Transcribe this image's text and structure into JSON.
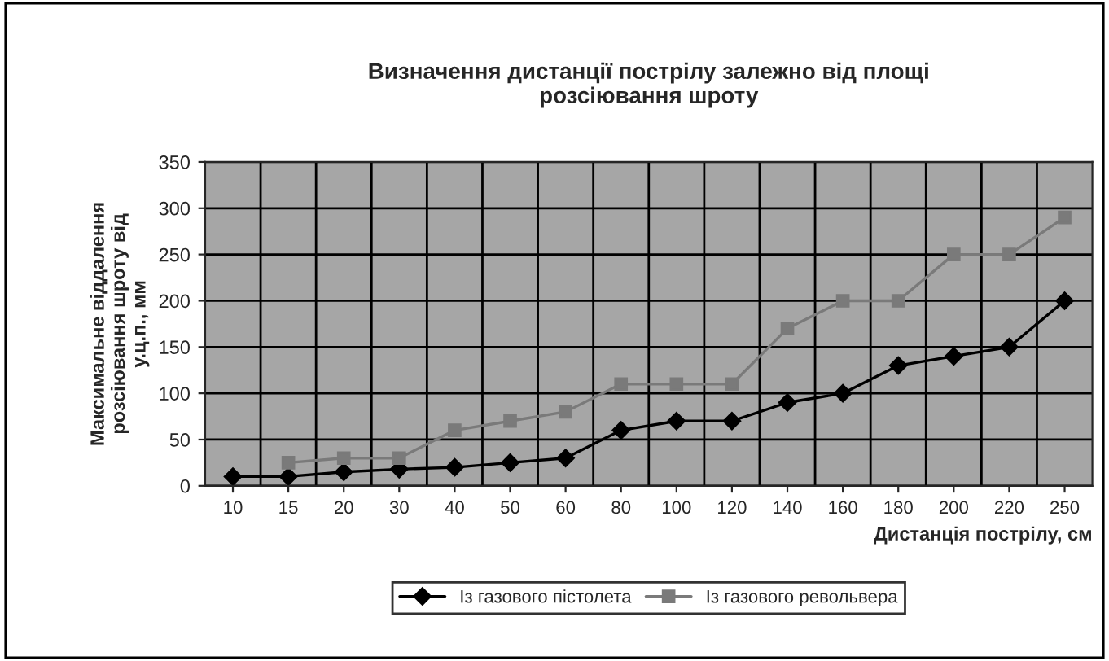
{
  "chart_data": {
    "type": "line",
    "title": "Визначення дистанції пострілу залежно від площі\nрозсіювання шроту",
    "xlabel": "Дистанція пострілу, см",
    "ylabel": "Максимальне віддалення\nрозсіювання шроту від\nу.ц.п., мм",
    "categories": [
      "10",
      "15",
      "20",
      "30",
      "40",
      "50",
      "60",
      "80",
      "100",
      "120",
      "140",
      "160",
      "180",
      "200",
      "220",
      "250"
    ],
    "series": [
      {
        "name": "Із газового пістолета",
        "color": "#000000",
        "marker": "diamond",
        "values": [
          10,
          10,
          15,
          18,
          20,
          25,
          30,
          60,
          70,
          70,
          90,
          100,
          130,
          140,
          150,
          200
        ]
      },
      {
        "name": "Із газового револьвера",
        "color": "#7a7a7a",
        "marker": "square",
        "values": [
          null,
          25,
          30,
          30,
          60,
          70,
          80,
          110,
          110,
          110,
          170,
          200,
          200,
          250,
          250,
          290
        ]
      }
    ],
    "ylim": [
      0,
      350
    ],
    "yticks": [
      0,
      50,
      100,
      150,
      200,
      250,
      300,
      350
    ],
    "grid": true,
    "legend": "bottom"
  }
}
